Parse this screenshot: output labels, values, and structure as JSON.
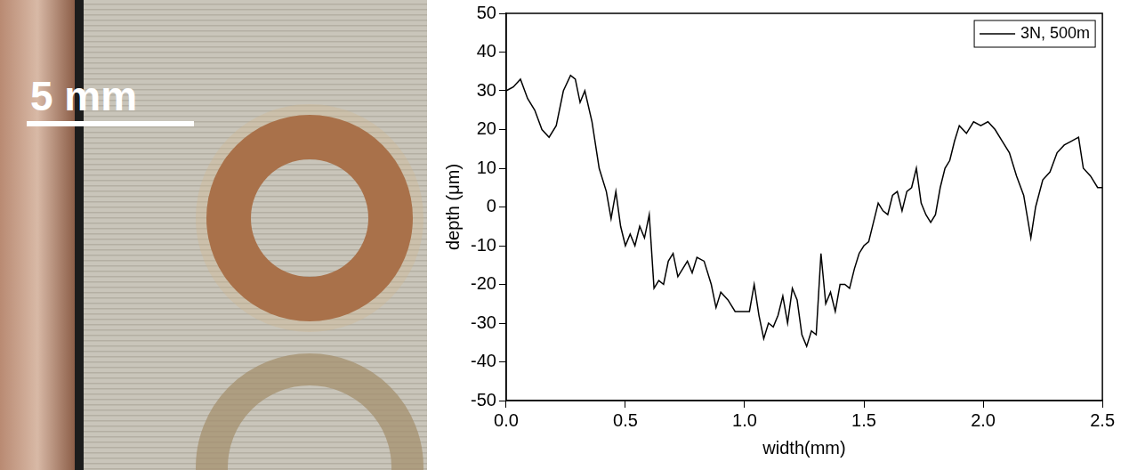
{
  "chart_data": {
    "type": "line",
    "x_label": "width(mm)",
    "y_label": "depth (μm)",
    "series": [
      {
        "name": "3N, 500m",
        "color": "#000000",
        "x": [
          0.0,
          0.03,
          0.06,
          0.09,
          0.12,
          0.15,
          0.18,
          0.21,
          0.24,
          0.27,
          0.29,
          0.31,
          0.33,
          0.36,
          0.39,
          0.42,
          0.44,
          0.46,
          0.48,
          0.5,
          0.52,
          0.54,
          0.56,
          0.58,
          0.6,
          0.62,
          0.64,
          0.66,
          0.68,
          0.7,
          0.72,
          0.74,
          0.76,
          0.78,
          0.8,
          0.83,
          0.86,
          0.88,
          0.9,
          0.93,
          0.96,
          0.99,
          1.02,
          1.04,
          1.06,
          1.08,
          1.1,
          1.12,
          1.14,
          1.16,
          1.18,
          1.2,
          1.22,
          1.24,
          1.26,
          1.28,
          1.3,
          1.32,
          1.34,
          1.36,
          1.38,
          1.4,
          1.42,
          1.44,
          1.46,
          1.48,
          1.5,
          1.52,
          1.54,
          1.56,
          1.58,
          1.6,
          1.62,
          1.64,
          1.66,
          1.68,
          1.7,
          1.72,
          1.74,
          1.76,
          1.78,
          1.8,
          1.82,
          1.84,
          1.86,
          1.88,
          1.9,
          1.93,
          1.96,
          1.99,
          2.02,
          2.05,
          2.08,
          2.11,
          2.14,
          2.17,
          2.2,
          2.22,
          2.25,
          2.28,
          2.31,
          2.34,
          2.37,
          2.4,
          2.42,
          2.45,
          2.48,
          2.5
        ],
        "values": [
          30,
          31,
          33,
          28,
          25,
          20,
          18,
          21,
          30,
          34,
          33,
          27,
          30,
          22,
          10,
          4,
          -3,
          4,
          -5,
          -10,
          -7,
          -10,
          -5,
          -8,
          -2,
          -21,
          -19,
          -20,
          -14,
          -12,
          -18,
          -16,
          -14,
          -17,
          -13,
          -14,
          -20,
          -26,
          -22,
          -24,
          -27,
          -27,
          -27,
          -20,
          -28,
          -34,
          -30,
          -31,
          -28,
          -23,
          -30,
          -21,
          -24,
          -33,
          -36,
          -32,
          -33,
          -12,
          -25,
          -22,
          -27,
          -20,
          -20,
          -21,
          -16,
          -12,
          -10,
          -9,
          -4,
          1,
          -1,
          -2,
          3,
          4,
          -1,
          4,
          5,
          10,
          1,
          -2,
          -4,
          -2,
          5,
          10,
          12,
          17,
          21,
          19,
          22,
          21,
          22,
          20,
          17,
          14,
          8,
          3,
          -8,
          0,
          7,
          9,
          14,
          16,
          17,
          18,
          10,
          8,
          5,
          5
        ]
      }
    ],
    "xlim": [
      0,
      2.5
    ],
    "xticks": [
      {
        "value": 0,
        "label": "0.0"
      },
      0.5,
      {
        "value": 1,
        "label": "1.0"
      },
      1.5,
      {
        "value": 2,
        "label": "2.0"
      },
      2.5
    ],
    "ylim": [
      -50,
      50
    ],
    "yticks": [
      -50,
      -40,
      -30,
      -20,
      -10,
      0,
      10,
      20,
      30,
      40,
      50
    ],
    "grid": false,
    "legend": "top right"
  },
  "photo": {
    "scale_bar": "5 mm"
  }
}
